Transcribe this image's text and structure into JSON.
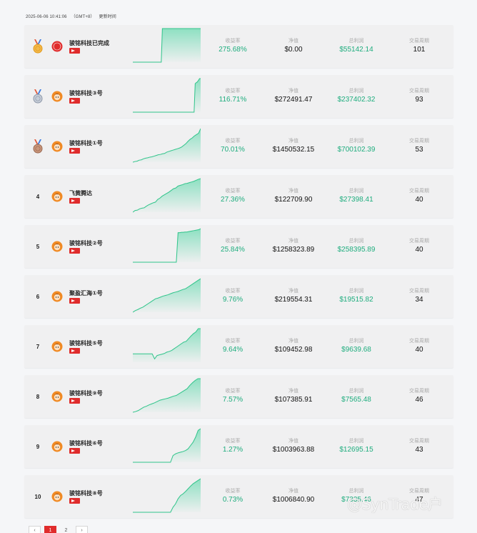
{
  "header": {
    "timestamp": "2025-06-06 10:41:06",
    "timezone": "（GMT+8）",
    "update_label": "更新时间"
  },
  "labels": {
    "return": "收益率",
    "nav": "净值",
    "profit": "总利润",
    "period": "交易周期"
  },
  "colors": {
    "green": "#1fad7e",
    "red": "#e02c2c",
    "card_bg": "#f0f0f1"
  },
  "rows": [
    {
      "rank": "1",
      "medal": "gold-medal-icon",
      "avatar": "red-badge-icon",
      "name": "骏铭科技已完成",
      "return": "275.68%",
      "nav": "$0.00",
      "profit": "$55142.14",
      "period": "101",
      "series": [
        0,
        0,
        0,
        0,
        0,
        0,
        0,
        0,
        0,
        0,
        0,
        0,
        0,
        0,
        0,
        0,
        0,
        0,
        0,
        0,
        0,
        0,
        0,
        0,
        0,
        0,
        0,
        1,
        1,
        1,
        1,
        1,
        1,
        1,
        1,
        1,
        1,
        1,
        1,
        1,
        1,
        1,
        1,
        1,
        1,
        1,
        1,
        1,
        1,
        1,
        1,
        1,
        1,
        1,
        1,
        1,
        1,
        1,
        1,
        1,
        1,
        1,
        1
      ]
    },
    {
      "rank": "2",
      "medal": "silver-medal-icon",
      "avatar": "avatar-icon",
      "name": "骏铭科技③号",
      "return": "116.71%",
      "nav": "$272491.47",
      "profit": "$237402.32",
      "period": "93",
      "series": [
        0,
        0,
        0,
        0,
        0,
        0,
        0,
        0,
        0,
        0,
        0,
        0,
        0,
        0,
        0,
        0,
        0,
        0,
        0,
        0,
        0,
        0,
        0,
        0,
        0,
        0,
        0,
        0,
        0,
        0,
        0,
        0,
        0,
        0,
        0,
        0,
        0,
        0,
        0,
        0,
        0,
        0,
        0,
        0,
        0,
        0,
        0,
        0,
        0,
        0,
        0,
        0,
        0,
        0,
        0,
        0,
        0,
        0.85,
        0.88,
        0.9,
        0.95,
        1,
        1
      ]
    },
    {
      "rank": "3",
      "medal": "bronze-medal-icon",
      "avatar": "avatar-icon",
      "name": "骏铭科技①号",
      "return": "70.01%",
      "nav": "$1450532.15",
      "profit": "$700102.39",
      "period": "53",
      "series": [
        0,
        0.02,
        0.03,
        0.06,
        0.07,
        0.1,
        0.12,
        0.13,
        0.15,
        0.16,
        0.18,
        0.2,
        0.22,
        0.23,
        0.25,
        0.26,
        0.3,
        0.32,
        0.34,
        0.36,
        0.38,
        0.4,
        0.42,
        0.45,
        0.5,
        0.55,
        0.62,
        0.68,
        0.72,
        0.78,
        0.82,
        0.86,
        1
      ]
    },
    {
      "rank": "4",
      "medal": "",
      "avatar": "avatar-icon",
      "name": "飞黄腾达",
      "return": "27.36%",
      "nav": "$122709.90",
      "profit": "$27398.41",
      "period": "40",
      "series": [
        0,
        0.05,
        0.06,
        0.1,
        0.12,
        0.13,
        0.18,
        0.22,
        0.25,
        0.28,
        0.3,
        0.38,
        0.42,
        0.48,
        0.52,
        0.56,
        0.6,
        0.65,
        0.7,
        0.72,
        0.78,
        0.8,
        0.82,
        0.85,
        0.86,
        0.88,
        0.9,
        0.92,
        0.95,
        0.98,
        1
      ]
    },
    {
      "rank": "5",
      "medal": "",
      "avatar": "avatar-icon",
      "name": "骏铭科技②号",
      "return": "25.84%",
      "nav": "$1258323.89",
      "profit": "$258395.89",
      "period": "40",
      "series": [
        0,
        0,
        0,
        0,
        0,
        0,
        0,
        0,
        0,
        0,
        0,
        0,
        0,
        0,
        0,
        0,
        0,
        0,
        0,
        0,
        0,
        0,
        0,
        0,
        0,
        0,
        0.88,
        0.88,
        0.89,
        0.89,
        0.9,
        0.9,
        0.91,
        0.92,
        0.93,
        0.94,
        0.95,
        0.96,
        0.97,
        1
      ]
    },
    {
      "rank": "6",
      "medal": "",
      "avatar": "avatar-icon",
      "name": "聚盈汇海①号",
      "return": "9.76%",
      "nav": "$219554.31",
      "profit": "$19515.82",
      "period": "34",
      "series": [
        0,
        0.05,
        0.08,
        0.12,
        0.15,
        0.2,
        0.25,
        0.3,
        0.35,
        0.4,
        0.42,
        0.45,
        0.48,
        0.5,
        0.52,
        0.55,
        0.58,
        0.6,
        0.62,
        0.65,
        0.68,
        0.7,
        0.75,
        0.8,
        0.85,
        0.9,
        0.95,
        1
      ]
    },
    {
      "rank": "7",
      "medal": "",
      "avatar": "avatar-icon",
      "name": "骏铭科技⑤号",
      "return": "9.64%",
      "nav": "$109452.98",
      "profit": "$9639.68",
      "period": "40",
      "series": [
        0.25,
        0.25,
        0.25,
        0.25,
        0.25,
        0.25,
        0.25,
        0.25,
        0.25,
        0.1,
        0.2,
        0.22,
        0.24,
        0.26,
        0.3,
        0.32,
        0.35,
        0.4,
        0.45,
        0.5,
        0.55,
        0.6,
        0.62,
        0.7,
        0.78,
        0.85,
        0.9,
        1,
        1
      ]
    },
    {
      "rank": "8",
      "medal": "",
      "avatar": "avatar-icon",
      "name": "骏铭科技⑨号",
      "return": "7.57%",
      "nav": "$107385.91",
      "profit": "$7565.48",
      "period": "46",
      "series": [
        0,
        0.02,
        0.05,
        0.1,
        0.15,
        0.18,
        0.22,
        0.25,
        0.28,
        0.32,
        0.36,
        0.38,
        0.4,
        0.42,
        0.45,
        0.48,
        0.5,
        0.55,
        0.6,
        0.65,
        0.7,
        0.8,
        0.88,
        0.95,
        1,
        1
      ]
    },
    {
      "rank": "9",
      "medal": "",
      "avatar": "avatar-icon",
      "name": "骏铭科技⑥号",
      "return": "1.27%",
      "nav": "$1003963.88",
      "profit": "$12695.15",
      "period": "43",
      "series": [
        0,
        0,
        0,
        0,
        0,
        0,
        0,
        0,
        0,
        0,
        0,
        0,
        0,
        0,
        0,
        0,
        0.2,
        0.25,
        0.28,
        0.3,
        0.32,
        0.35,
        0.4,
        0.5,
        0.6,
        0.75,
        0.95,
        1
      ]
    },
    {
      "rank": "10",
      "medal": "",
      "avatar": "avatar-icon",
      "name": "骏铭科技⑧号",
      "return": "0.73%",
      "nav": "$1006840.90",
      "profit": "$7335.46",
      "period": "47",
      "series": [
        0,
        0,
        0,
        0,
        0,
        0,
        0,
        0,
        0,
        0,
        0,
        0,
        0,
        0,
        0,
        0,
        0.15,
        0.25,
        0.4,
        0.5,
        0.55,
        0.62,
        0.7,
        0.78,
        0.85,
        0.9,
        0.95,
        1
      ]
    }
  ],
  "pagination": {
    "prev": "‹",
    "pages": [
      "1",
      "2"
    ],
    "next": "›"
  },
  "watermark": "@SynTrade户"
}
